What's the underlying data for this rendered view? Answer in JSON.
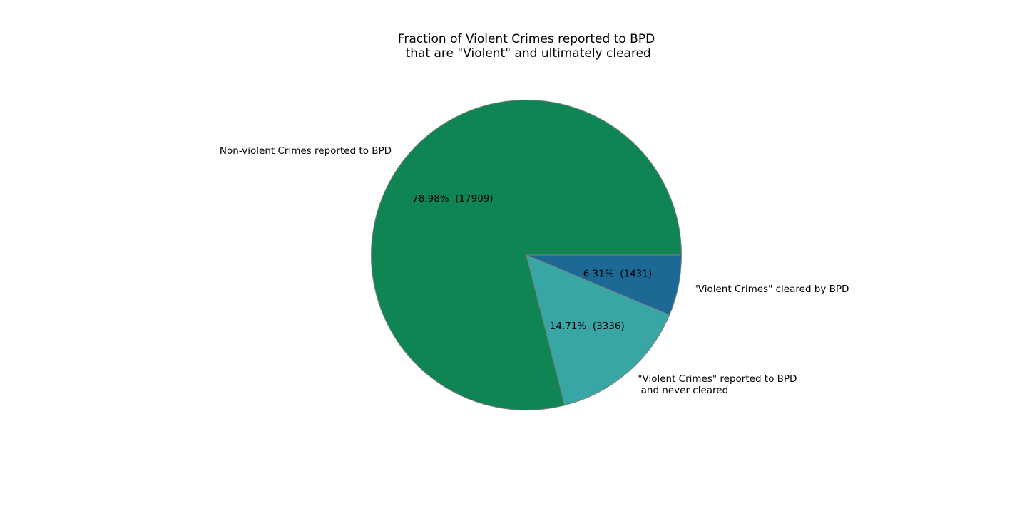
{
  "chart_data": {
    "type": "pie",
    "title": "Fraction of Violent Crimes reported to BPD\n that are \"Violent\" and ultimately cleared",
    "start_angle_deg": 0,
    "direction": "clockwise",
    "slices": [
      {
        "label": "\"Violent Crimes\" cleared by BPD",
        "value": 1431,
        "percent_label": "6.31%  (1431)",
        "color": "#1d6996"
      },
      {
        "label": "\"Violent Crimes\" reported to BPD\n and never cleared",
        "value": 3336,
        "percent_label": "14.71%  (3336)",
        "color": "#38a6a5"
      },
      {
        "label": "Non-violent Crimes reported to BPD",
        "value": 17909,
        "percent_label": "78.98%  (17909)",
        "color": "#0f8554"
      }
    ],
    "edge_color": "#7f7f7f"
  }
}
